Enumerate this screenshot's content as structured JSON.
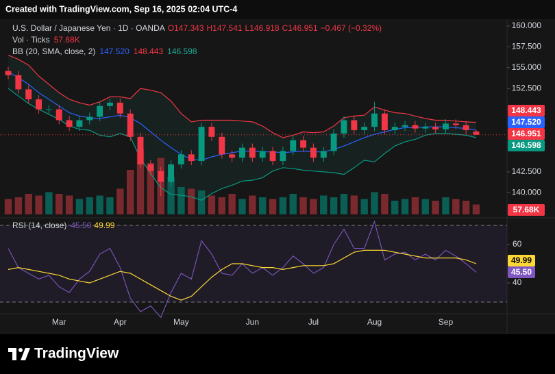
{
  "header": {
    "created": "Created with TradingView.com, Sep 16, 2025 02:04 UTC-4"
  },
  "footer": {
    "brand": "TradingView"
  },
  "chart_data": {
    "type": "candlestick",
    "symbol": "U.S. Dollar / Japanese Yen · 1D · OANDA",
    "ohlc_labels": [
      "O147.343",
      "H147.541",
      "L146.918",
      "C146.951"
    ],
    "change": "−0.467 (−0.32%)",
    "categories": [
      null,
      null,
      null,
      null,
      null,
      "Mar",
      null,
      null,
      null,
      null,
      null,
      "Apr",
      null,
      null,
      null,
      null,
      null,
      "May",
      null,
      null,
      null,
      null,
      null,
      null,
      "Jun",
      null,
      null,
      null,
      null,
      null,
      "Jul",
      null,
      null,
      null,
      null,
      null,
      "Aug",
      null,
      null,
      null,
      null,
      null,
      null,
      "Sep",
      null,
      null,
      null
    ],
    "up_color": "#089981",
    "down_color": "#f23645",
    "open": [
      154.6,
      154.1,
      152.4,
      151.2,
      150.0,
      150.0,
      148.7,
      147.9,
      148.7,
      149.1,
      150.4,
      150.8,
      149.5,
      146.7,
      143.4,
      142.6,
      141.3,
      143.4,
      144.6,
      143.8,
      147.9,
      146.7,
      144.6,
      144.2,
      145.4,
      144.2,
      145.0,
      143.8,
      145.0,
      146.3,
      145.4,
      144.2,
      145.0,
      147.1,
      148.7,
      147.5,
      147.9,
      149.5,
      147.5,
      147.9,
      148.1,
      147.7,
      147.9,
      147.6,
      148.3,
      148.1,
      147.343
    ],
    "high": [
      155.1,
      154.6,
      152.9,
      151.7,
      150.5,
      150.5,
      149.2,
      149.2,
      149.6,
      150.9,
      151.3,
      151.3,
      150.0,
      147.2,
      143.9,
      143.1,
      143.9,
      145.1,
      145.1,
      148.4,
      148.4,
      147.2,
      145.1,
      145.9,
      145.9,
      145.5,
      145.5,
      145.5,
      146.8,
      146.8,
      145.9,
      145.5,
      147.6,
      149.2,
      149.2,
      148.4,
      150.9,
      150.0,
      148.4,
      148.6,
      148.6,
      148.4,
      148.4,
      148.8,
      148.8,
      148.6,
      147.541
    ],
    "low": [
      153.6,
      151.9,
      150.7,
      149.5,
      149.5,
      148.2,
      147.4,
      147.4,
      148.2,
      148.6,
      149.9,
      149.0,
      146.2,
      142.9,
      142.1,
      139.6,
      140.8,
      142.9,
      143.3,
      143.3,
      146.2,
      144.1,
      143.7,
      143.7,
      143.7,
      143.7,
      143.3,
      143.3,
      144.5,
      144.9,
      143.7,
      143.7,
      144.5,
      146.6,
      147.0,
      147.0,
      147.4,
      147.0,
      147.0,
      147.4,
      147.2,
      147.2,
      147.1,
      147.1,
      147.6,
      147.0,
      146.918
    ],
    "close": [
      154.1,
      152.4,
      151.2,
      150.0,
      150.0,
      148.7,
      147.9,
      148.7,
      149.1,
      150.4,
      150.8,
      149.5,
      146.7,
      143.4,
      142.6,
      141.3,
      143.4,
      144.6,
      143.8,
      147.9,
      146.7,
      144.6,
      144.2,
      145.4,
      144.2,
      145.0,
      143.8,
      145.0,
      146.3,
      145.4,
      144.2,
      145.0,
      147.1,
      148.7,
      147.5,
      147.9,
      149.5,
      147.5,
      147.9,
      148.1,
      147.7,
      147.9,
      147.6,
      148.3,
      148.1,
      147.5,
      146.951
    ],
    "ylim": [
      137.4,
      160.65
    ],
    "yticks": [
      {
        "value": 160,
        "label": "160.000"
      },
      {
        "value": 157.5,
        "label": "157.500"
      },
      {
        "value": 155,
        "label": "155.000"
      },
      {
        "value": 152.5,
        "label": "152.500"
      },
      {
        "value": 142.5,
        "label": "142.500"
      },
      {
        "value": 140,
        "label": "140.000"
      }
    ],
    "bb_legend": {
      "title": "BB (20, SMA, close, 2)",
      "basis": "147.520",
      "upper": "148.443",
      "lower": "146.598"
    },
    "bollinger": {
      "upper": {
        "color": "#f23645",
        "values": [
          156.5,
          156.0,
          155.3,
          154.0,
          153.0,
          152.0,
          151.2,
          150.8,
          150.5,
          150.9,
          151.5,
          151.5,
          151.3,
          152.5,
          152.3,
          152.0,
          151.0,
          149.5,
          148.5,
          148.7,
          148.7,
          148.7,
          148.7,
          148.6,
          148.5,
          148.0,
          147.2,
          146.6,
          146.9,
          147.3,
          147.2,
          147.3,
          148.0,
          149.0,
          149.2,
          149.3,
          150.3,
          149.9,
          149.6,
          149.5,
          149.2,
          148.9,
          148.7,
          148.7,
          148.6,
          148.5,
          148.443
        ]
      },
      "basis": {
        "color": "#2962ff",
        "values": [
          154.5,
          153.8,
          153.0,
          152.0,
          151.2,
          150.4,
          149.6,
          149.2,
          149.0,
          148.9,
          149.1,
          149.3,
          149.0,
          148.3,
          147.3,
          146.3,
          145.4,
          144.6,
          144.0,
          143.9,
          144.3,
          144.6,
          144.8,
          145.0,
          145.0,
          144.9,
          144.9,
          144.8,
          144.9,
          145.0,
          144.9,
          144.9,
          145.2,
          145.6,
          146.1,
          146.6,
          147.0,
          147.3,
          147.6,
          147.8,
          147.8,
          147.9,
          147.9,
          147.9,
          147.8,
          147.7,
          147.52
        ]
      },
      "lower": {
        "color": "#089981",
        "values": [
          152.5,
          151.6,
          150.7,
          150.0,
          149.4,
          148.8,
          148.0,
          147.6,
          147.5,
          146.9,
          146.7,
          147.1,
          146.7,
          144.1,
          142.3,
          140.6,
          139.8,
          139.7,
          139.5,
          139.1,
          139.9,
          140.5,
          140.9,
          141.4,
          141.5,
          141.8,
          142.6,
          143.0,
          142.9,
          142.7,
          142.6,
          142.5,
          142.4,
          142.2,
          143.0,
          143.9,
          143.7,
          144.7,
          145.6,
          146.1,
          146.4,
          146.9,
          147.1,
          147.1,
          147.0,
          146.9,
          146.598
        ]
      }
    },
    "volume_legend": {
      "title": "Vol · Ticks",
      "value": "57.68K"
    },
    "volume": {
      "ylim": [
        0,
        400
      ],
      "values": [
        90,
        100,
        120,
        110,
        130,
        120,
        110,
        90,
        100,
        110,
        100,
        150,
        260,
        380,
        300,
        330,
        220,
        160,
        150,
        140,
        110,
        100,
        120,
        90,
        110,
        100,
        90,
        100,
        120,
        100,
        90,
        110,
        100,
        120,
        110,
        90,
        130,
        120,
        80,
        90,
        100,
        90,
        80,
        100,
        90,
        80,
        57.68
      ]
    },
    "rsi_legend": {
      "title": "RSI (14, close)",
      "rsi": "45.50"
    },
    "rsi": {
      "ylim": [
        27.5,
        72.5
      ],
      "yticks": [
        40,
        60
      ],
      "bands": [
        30,
        70
      ],
      "color": "#7e57c2",
      "ma_color": "#fdd835",
      "values": [
        58,
        48,
        45,
        42,
        44,
        38,
        35,
        42,
        46,
        55,
        58,
        48,
        32,
        25,
        28,
        22,
        35,
        45,
        42,
        62,
        55,
        45,
        44,
        50,
        45,
        48,
        44,
        48,
        54,
        50,
        45,
        48,
        60,
        68,
        58,
        58,
        72,
        52,
        55,
        56,
        52,
        55,
        52,
        57,
        54,
        50,
        45.5
      ],
      "ma": [
        47,
        48,
        47,
        46,
        45,
        44,
        42,
        41,
        40,
        42,
        44,
        46,
        45,
        42,
        39,
        36,
        33,
        31,
        33,
        38,
        43,
        47,
        50,
        50,
        49,
        48,
        48,
        47,
        48,
        49,
        49,
        49,
        50,
        53,
        56,
        57,
        57,
        57,
        56,
        55,
        54,
        53,
        53,
        53,
        53,
        52,
        49.99
      ]
    }
  }
}
